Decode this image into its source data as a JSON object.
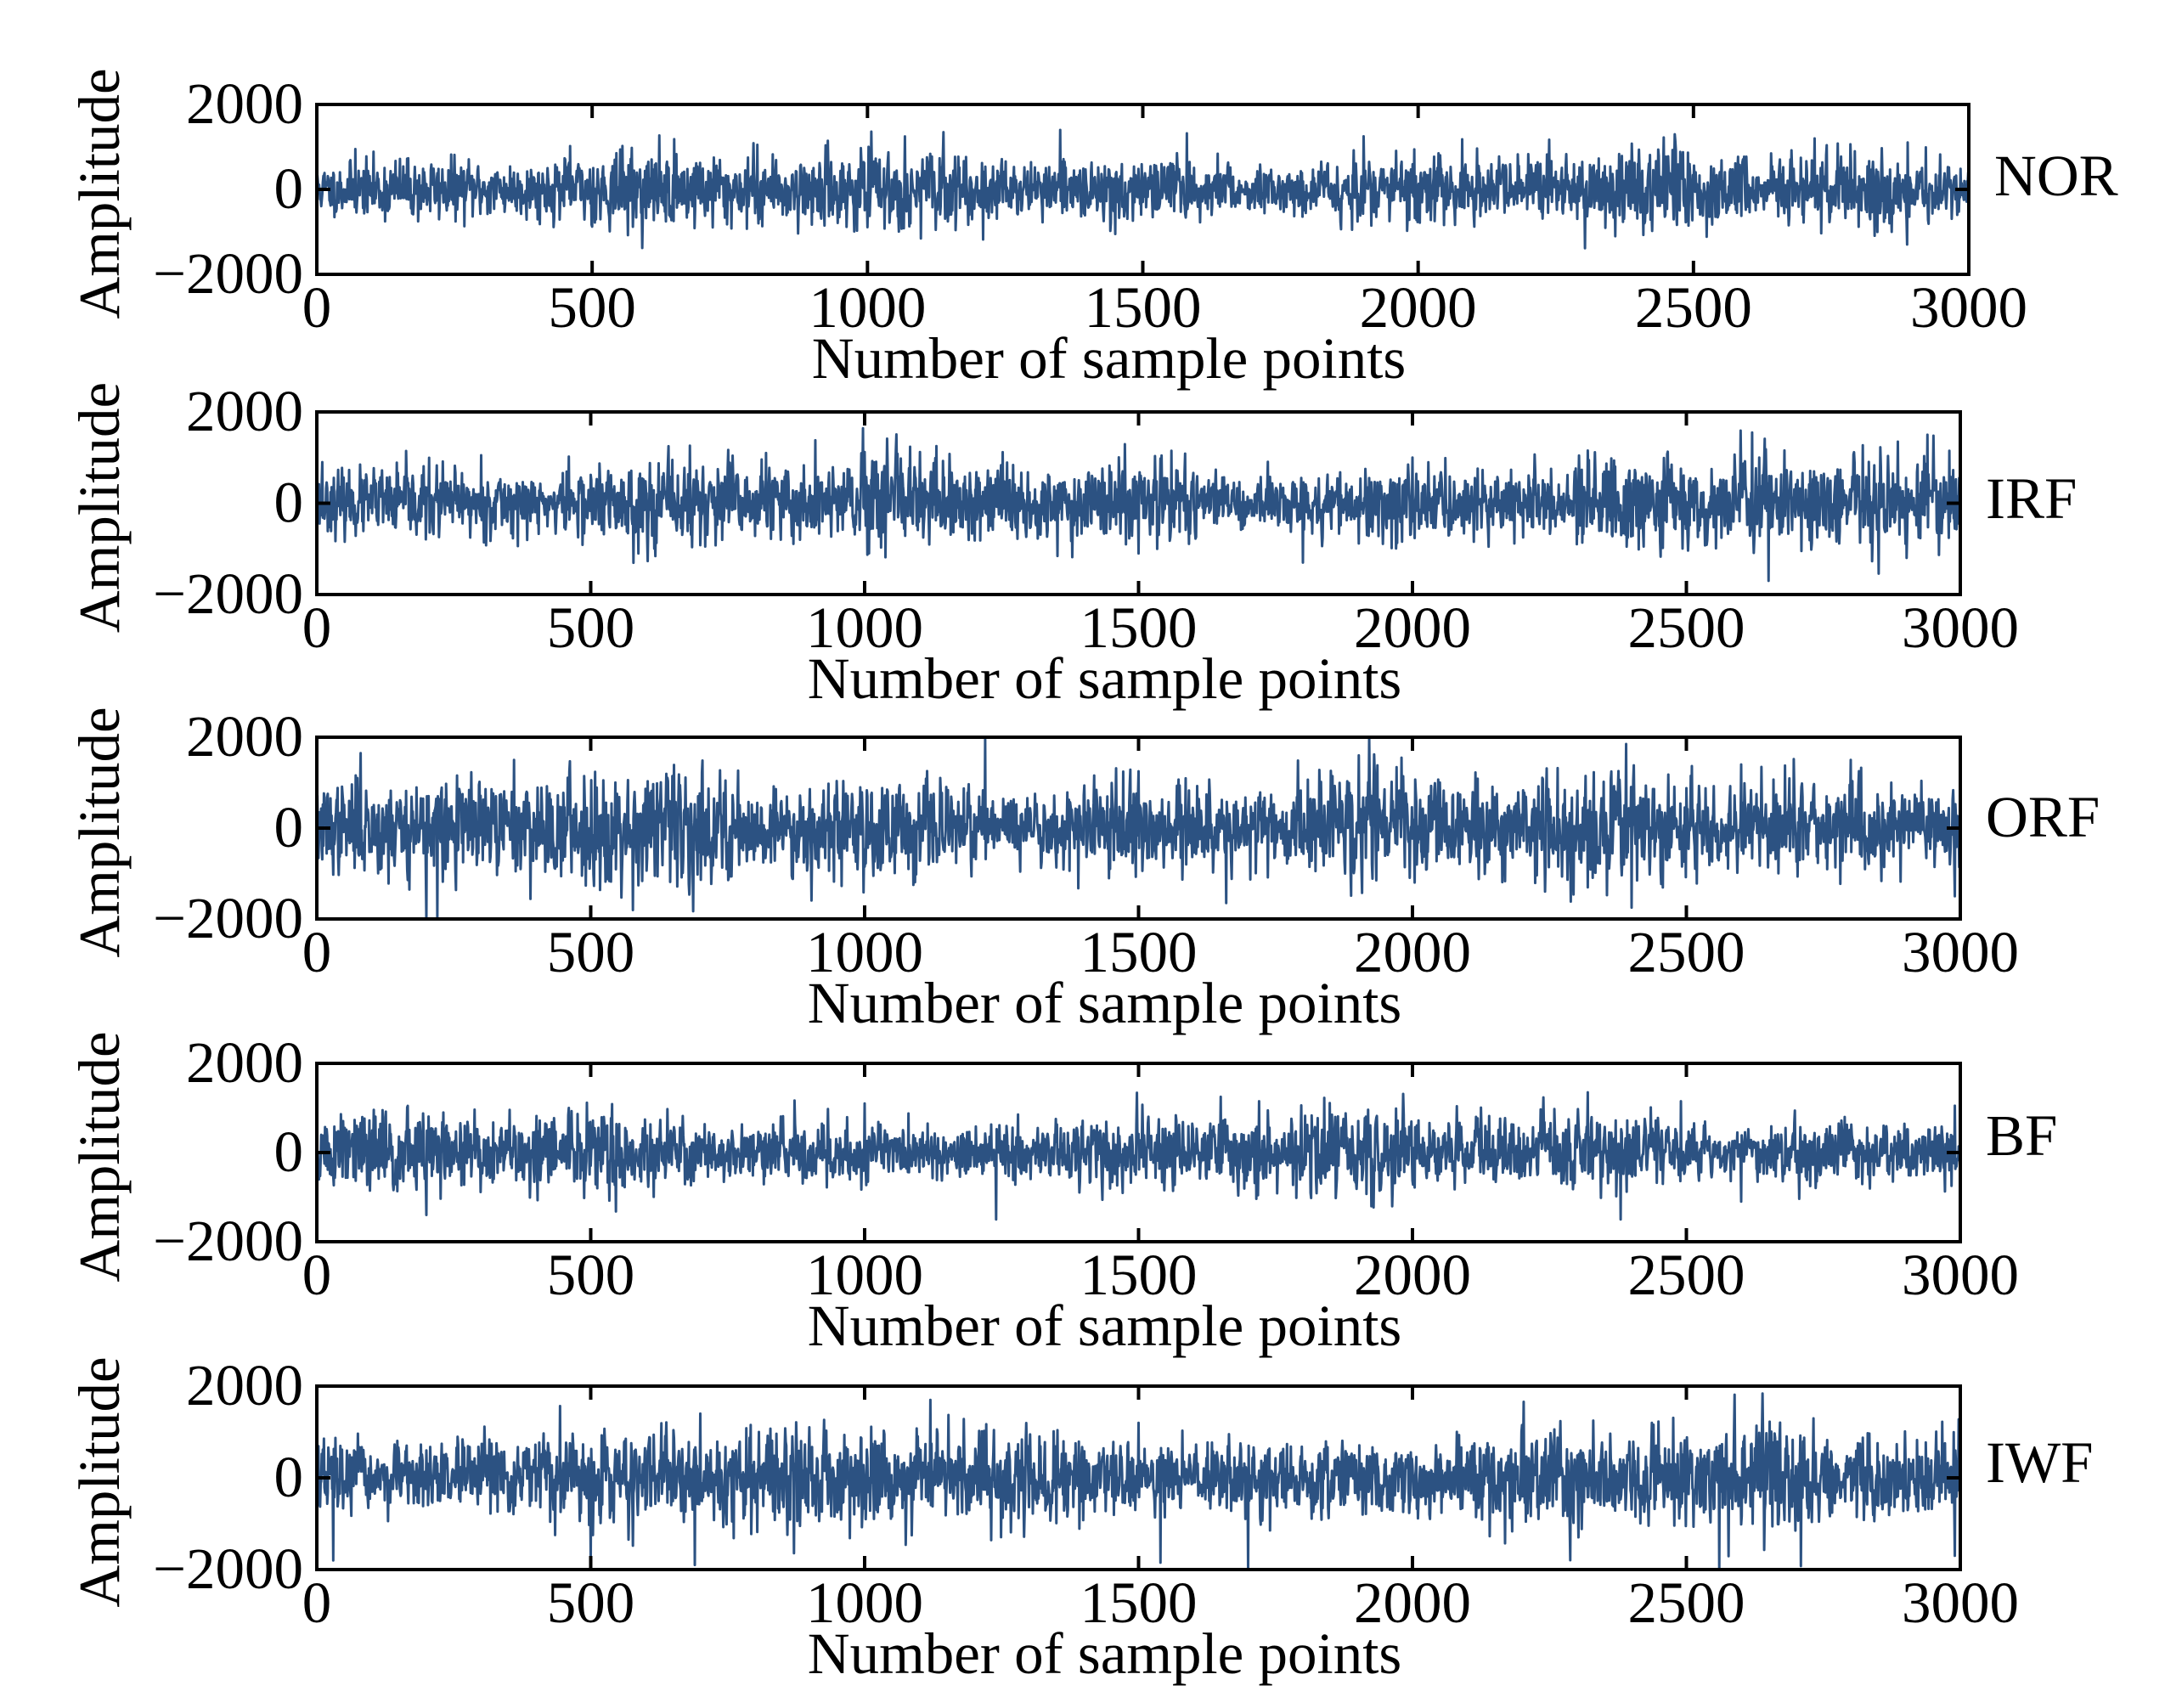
{
  "chart_data": [
    {
      "type": "line",
      "series": [
        {
          "name": "NOR",
          "seed": 11,
          "amplitude": 420,
          "clip": false,
          "spikes": [
            [
              70,
              950
            ],
            [
              460,
              1020
            ],
            [
              800,
              1050
            ],
            [
              1210,
              -1180
            ],
            [
              1450,
              -1050
            ],
            [
              1580,
              1320
            ],
            [
              1880,
              -950
            ],
            [
              2080,
              1180
            ],
            [
              2720,
              1200
            ],
            [
              2800,
              -880
            ]
          ]
        }
      ],
      "xlabel": "Number of sample points",
      "ylabel": "Amplitude",
      "xlim": [
        0,
        3000
      ],
      "ylim": [
        -2000,
        2000
      ],
      "xticks": [
        "0",
        "500",
        "1000",
        "1500",
        "2000",
        "2500",
        "3000"
      ],
      "yticks": [
        "2000",
        "0",
        "−2000"
      ],
      "color": "#2c5282",
      "grid": false
    },
    {
      "type": "line",
      "series": [
        {
          "name": "IRF",
          "seed": 23,
          "amplitude": 470,
          "clip": false,
          "spikes": [
            [
              10,
              900
            ],
            [
              300,
              1050
            ],
            [
              460,
              1020
            ],
            [
              820,
              1100
            ],
            [
              910,
              1380
            ],
            [
              1500,
              -1100
            ],
            [
              1560,
              1150
            ],
            [
              1800,
              -1300
            ],
            [
              2000,
              1000
            ],
            [
              2620,
              1550
            ],
            [
              2650,
              -1700
            ],
            [
              2940,
              1500
            ],
            [
              2980,
              1150
            ]
          ]
        }
      ],
      "xlabel": "Number of sample points",
      "ylabel": "Amplitude",
      "xlim": [
        0,
        3000
      ],
      "ylim": [
        -2000,
        2000
      ],
      "xticks": [
        "0",
        "500",
        "1000",
        "1500",
        "2000",
        "2500",
        "3000"
      ],
      "yticks": [
        "2000",
        "0",
        "−2000"
      ],
      "color": "#2c5282",
      "grid": false
    },
    {
      "type": "line",
      "series": [
        {
          "name": "ORF",
          "seed": 37,
          "amplitude": 580,
          "clip": true,
          "spikes": [
            [
              80,
              1650
            ],
            [
              200,
              -2000
            ],
            [
              220,
              -2000
            ],
            [
              360,
              1500
            ],
            [
              1220,
              1950
            ],
            [
              1500,
              1250
            ],
            [
              1660,
              -1650
            ],
            [
              2390,
              1850
            ],
            [
              2400,
              -1750
            ],
            [
              2600,
              1400
            ],
            [
              2800,
              1500
            ],
            [
              2990,
              -1500
            ]
          ]
        }
      ],
      "xlabel": "Number of sample points",
      "ylabel": "Amplitude",
      "xlim": [
        0,
        3000
      ],
      "ylim": [
        -2000,
        2000
      ],
      "xticks": [
        "0",
        "500",
        "1000",
        "1500",
        "2000",
        "2500",
        "3000"
      ],
      "yticks": [
        "2000",
        "0",
        "−2000"
      ],
      "color": "#2c5282",
      "grid": false
    },
    {
      "type": "line",
      "series": [
        {
          "name": "BF",
          "seed": 51,
          "amplitude": 430,
          "clip": false,
          "spikes": [
            [
              120,
              950
            ],
            [
              200,
              -1400
            ],
            [
              460,
              1000
            ],
            [
              1000,
              1100
            ],
            [
              1240,
              -1500
            ],
            [
              1650,
              1250
            ],
            [
              1720,
              1150
            ],
            [
              2320,
              1350
            ],
            [
              2380,
              -1500
            ],
            [
              2490,
              1150
            ],
            [
              2600,
              -1100
            ],
            [
              2990,
              1050
            ]
          ]
        }
      ],
      "xlabel": "Number of sample points",
      "ylabel": "Amplitude",
      "xlim": [
        0,
        3000
      ],
      "ylim": [
        -2000,
        2000
      ],
      "xticks": [
        "0",
        "500",
        "1000",
        "1500",
        "2000",
        "2500",
        "3000"
      ],
      "yticks": [
        "2000",
        "0",
        "−2000"
      ],
      "color": "#2c5282",
      "grid": false
    },
    {
      "type": "line",
      "series": [
        {
          "name": "IWF",
          "seed": 67,
          "amplitude": 520,
          "clip": true,
          "spikes": [
            [
              30,
              -1800
            ],
            [
              500,
              -1800
            ],
            [
              690,
              -1900
            ],
            [
              700,
              1400
            ],
            [
              1120,
              1700
            ],
            [
              1500,
              1200
            ],
            [
              1540,
              -1850
            ],
            [
              1700,
              -2000
            ],
            [
              2200,
              1150
            ],
            [
              2560,
              -2000
            ],
            [
              2990,
              -1700
            ]
          ]
        }
      ],
      "xlabel": "Number of sample points",
      "ylabel": "Amplitude",
      "xlim": [
        0,
        3000
      ],
      "ylim": [
        -2000,
        2000
      ],
      "xticks": [
        "0",
        "500",
        "1000",
        "1500",
        "2000",
        "2500",
        "3000"
      ],
      "yticks": [
        "2000",
        "0",
        "−2000"
      ],
      "color": "#2c5282",
      "grid": false
    }
  ]
}
